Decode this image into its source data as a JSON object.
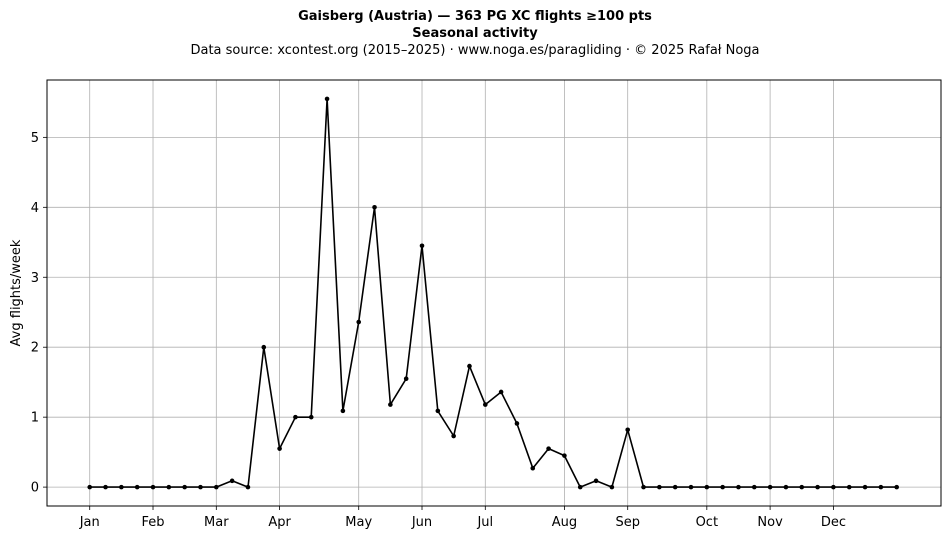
{
  "titles": {
    "line1": "Gaisberg (Austria)  —  363 PG XC flights ≥100 pts",
    "line2": "Seasonal activity",
    "line3": "Data source: xcontest.org (2015–2025)  ·  www.noga.es/paragliding  ·  © 2025 Rafał Noga"
  },
  "chart_data": {
    "type": "line",
    "title": "Gaisberg (Austria)  —  363 PG XC flights ≥100 pts",
    "subtitle": "Seasonal activity",
    "xlabel": "",
    "ylabel": "Avg flights/week",
    "x_unit": "week of year",
    "x_ticks": [
      {
        "label": "Jan",
        "x": 1
      },
      {
        "label": "Feb",
        "x": 5
      },
      {
        "label": "Mar",
        "x": 9
      },
      {
        "label": "Apr",
        "x": 13
      },
      {
        "label": "May",
        "x": 18
      },
      {
        "label": "Jun",
        "x": 22
      },
      {
        "label": "Jul",
        "x": 26
      },
      {
        "label": "Aug",
        "x": 31
      },
      {
        "label": "Sep",
        "x": 35
      },
      {
        "label": "Oct",
        "x": 40
      },
      {
        "label": "Nov",
        "x": 44
      },
      {
        "label": "Dec",
        "x": 48
      }
    ],
    "y_ticks": [
      0,
      1,
      2,
      3,
      4,
      5
    ],
    "xlim": [
      -1.7,
      54.8
    ],
    "ylim": [
      -0.27,
      5.82
    ],
    "grid": true,
    "line_color": "#000000",
    "grid_color": "#b0b0b0",
    "series": [
      {
        "x": [
          1,
          2,
          3,
          4,
          5,
          6,
          7,
          8,
          9,
          10,
          11,
          12,
          13,
          14,
          15,
          16,
          17,
          18,
          19,
          20,
          21,
          22,
          23,
          24,
          25,
          26,
          27,
          28,
          29,
          30,
          31,
          32,
          33,
          34,
          35,
          36,
          37,
          38,
          39,
          40,
          41,
          42,
          43,
          44,
          45,
          46,
          47,
          48,
          49,
          50,
          51,
          52
        ],
        "values": [
          0,
          0,
          0,
          0,
          0,
          0,
          0,
          0,
          0,
          0.09,
          0,
          2.0,
          0.55,
          1.0,
          1.0,
          5.55,
          1.09,
          2.36,
          4.0,
          1.18,
          1.55,
          3.45,
          1.09,
          0.73,
          1.73,
          1.18,
          1.36,
          0.91,
          0.27,
          0.55,
          0.45,
          0,
          0.09,
          0,
          0.82,
          0,
          0,
          0,
          0,
          0,
          0,
          0,
          0,
          0,
          0,
          0,
          0,
          0,
          0,
          0,
          0,
          0
        ]
      }
    ]
  }
}
